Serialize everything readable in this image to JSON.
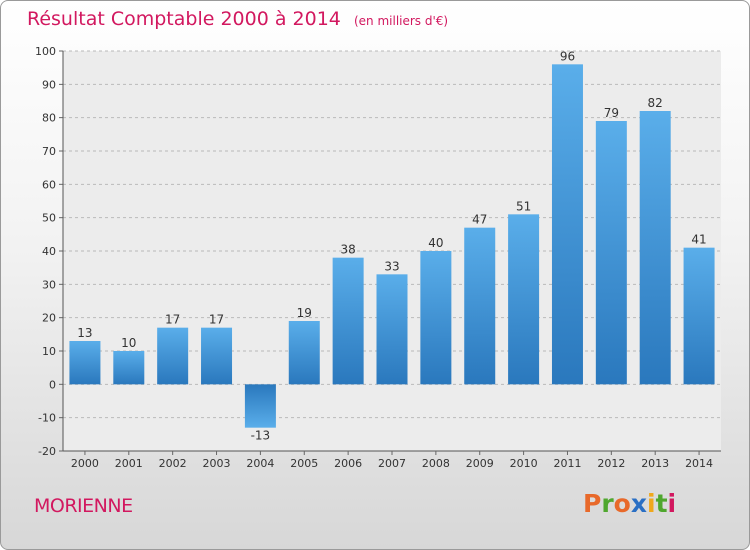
{
  "chart_data": {
    "type": "bar",
    "title": "Résultat Comptable 2000 à 2014",
    "subtitle": "(en milliers d'€)",
    "categories": [
      "2000",
      "2001",
      "2002",
      "2003",
      "2004",
      "2005",
      "2006",
      "2007",
      "2008",
      "2009",
      "2010",
      "2011",
      "2012",
      "2013",
      "2014"
    ],
    "values": [
      13,
      10,
      17,
      17,
      -13,
      19,
      38,
      33,
      40,
      47,
      51,
      96,
      79,
      82,
      41
    ],
    "value_labels": [
      "13",
      "10",
      "17",
      "17",
      "-13",
      "19",
      "38",
      "33",
      "40",
      "47",
      "51",
      "96",
      "79",
      "82",
      "41"
    ],
    "ylim": [
      -20,
      100
    ],
    "yticks": [
      -20,
      -10,
      0,
      10,
      20,
      30,
      40,
      50,
      60,
      70,
      80,
      90,
      100
    ],
    "xlabel": "",
    "ylabel": "",
    "grid": true,
    "bar_color": "#3c94d8"
  },
  "footer": {
    "region": "MORIENNE"
  },
  "logo": {
    "letters": [
      "P",
      "r",
      "o",
      "x",
      "i",
      "t",
      "i"
    ],
    "colors": [
      "#e8692a",
      "#4fa72e",
      "#e8692a",
      "#2a6fc4",
      "#f0a81c",
      "#4fa72e",
      "#d2185f"
    ]
  }
}
